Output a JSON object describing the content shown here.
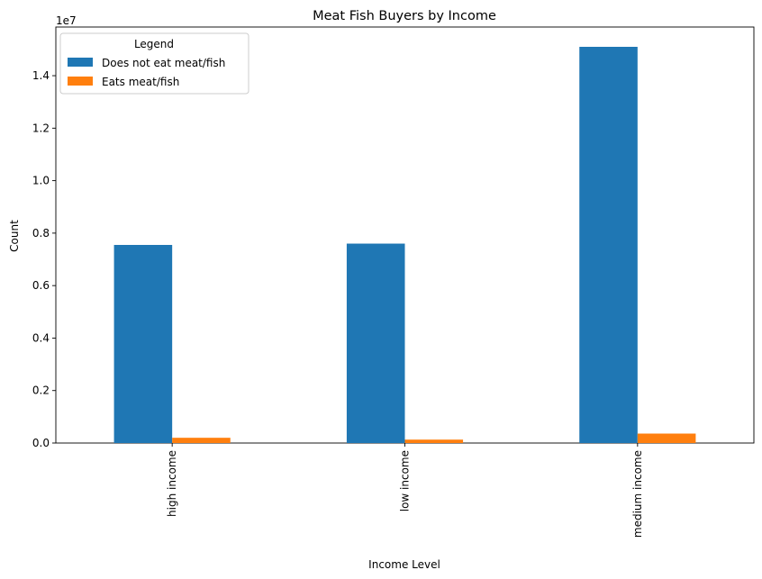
{
  "chart_data": {
    "type": "bar",
    "title": "Meat Fish Buyers by Income",
    "xlabel": "Income Level",
    "ylabel": "Count",
    "y_offset_label": "1e7",
    "categories": [
      "high income",
      "low income",
      "medium income"
    ],
    "series": [
      {
        "name": "Does not eat meat/fish",
        "color": "#1f77b4",
        "values": [
          7550000,
          7600000,
          15100000
        ]
      },
      {
        "name": "Eats meat/fish",
        "color": "#ff7f0e",
        "values": [
          200000,
          130000,
          360000
        ]
      }
    ],
    "ylim": [
      0,
      15855000
    ],
    "y_ticks": [
      0,
      2000000,
      4000000,
      6000000,
      8000000,
      10000000,
      12000000,
      14000000
    ],
    "y_tick_labels": [
      "0.0",
      "0.2",
      "0.4",
      "0.6",
      "0.8",
      "1.0",
      "1.2",
      "1.4"
    ],
    "legend": {
      "title": "Legend",
      "placement": "top-left"
    },
    "grid": false
  }
}
